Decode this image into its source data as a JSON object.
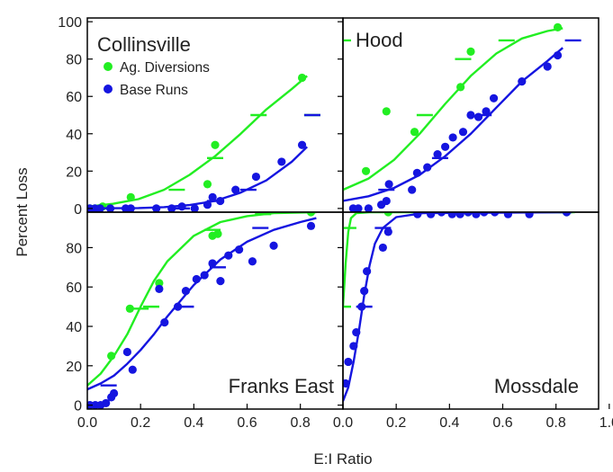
{
  "figure": {
    "ylabel": "Percent Loss",
    "xlabel": "E:I Ratio",
    "legend": {
      "ag_label": "Ag. Diversions",
      "base_label": "Base Runs",
      "placement": "top-left of Collinsville panel"
    }
  },
  "colors": {
    "ag": "#22ee22",
    "base": "#1515e0",
    "axis": "#000000"
  },
  "chart_data": [
    {
      "type": "scatter",
      "title": "Collinsville",
      "xlim": [
        0,
        1.0
      ],
      "ylim": [
        -2,
        102
      ],
      "yticks": [
        0,
        20,
        40,
        60,
        80,
        100
      ],
      "xticks": [],
      "series": [
        {
          "name": "Ag. Diversions",
          "color": "#22ee22",
          "points": [
            [
              0.01,
              0
            ],
            [
              0.03,
              0
            ],
            [
              0.06,
              1
            ],
            [
              0.17,
              6
            ],
            [
              0.47,
              13
            ],
            [
              0.5,
              34
            ],
            [
              0.84,
              70
            ]
          ],
          "curve": [
            [
              0,
              1
            ],
            [
              0.1,
              2.5
            ],
            [
              0.2,
              5
            ],
            [
              0.3,
              10
            ],
            [
              0.4,
              18
            ],
            [
              0.5,
              28
            ],
            [
              0.6,
              40
            ],
            [
              0.7,
              53
            ],
            [
              0.8,
              64
            ],
            [
              0.86,
              71
            ]
          ],
          "dashes": [
            [
              0.35,
              10
            ],
            [
              0.5,
              27
            ],
            [
              0.67,
              50
            ],
            [
              0.88,
              50
            ]
          ]
        },
        {
          "name": "Base Runs",
          "color": "#1515e0",
          "points": [
            [
              0.01,
              0
            ],
            [
              0.03,
              0
            ],
            [
              0.05,
              0
            ],
            [
              0.09,
              0
            ],
            [
              0.15,
              0
            ],
            [
              0.17,
              0
            ],
            [
              0.27,
              0
            ],
            [
              0.33,
              0
            ],
            [
              0.37,
              1
            ],
            [
              0.42,
              0
            ],
            [
              0.47,
              2
            ],
            [
              0.49,
              6
            ],
            [
              0.52,
              4
            ],
            [
              0.58,
              10
            ],
            [
              0.66,
              17
            ],
            [
              0.76,
              25
            ],
            [
              0.84,
              34
            ]
          ],
          "curve": [
            [
              0,
              0
            ],
            [
              0.2,
              0.2
            ],
            [
              0.3,
              0.7
            ],
            [
              0.4,
              1.8
            ],
            [
              0.5,
              4
            ],
            [
              0.6,
              8.5
            ],
            [
              0.7,
              15
            ],
            [
              0.8,
              25
            ],
            [
              0.86,
              33
            ]
          ],
          "dashes": [
            [
              0.37,
              0
            ],
            [
              0.5,
              4
            ],
            [
              0.63,
              10
            ],
            [
              0.88,
              50
            ]
          ]
        }
      ]
    },
    {
      "type": "scatter",
      "title": "Hood",
      "xlim": [
        0,
        1.0
      ],
      "ylim": [
        -2,
        102
      ],
      "yticks": [],
      "xticks": [],
      "series": [
        {
          "name": "Ag. Diversions",
          "color": "#22ee22",
          "points": [
            [
              0.09,
              20
            ],
            [
              0.17,
              52
            ],
            [
              0.28,
              41
            ],
            [
              0.46,
              65
            ],
            [
              0.5,
              84
            ],
            [
              0.84,
              97
            ]
          ],
          "curve": [
            [
              0,
              10
            ],
            [
              0.1,
              16
            ],
            [
              0.2,
              26
            ],
            [
              0.3,
              40
            ],
            [
              0.4,
              56
            ],
            [
              0.5,
              71
            ],
            [
              0.6,
              83
            ],
            [
              0.7,
              91
            ],
            [
              0.8,
              95
            ],
            [
              0.86,
              96.5
            ]
          ],
          "dashes": [
            [
              0,
              90
            ],
            [
              0.32,
              50
            ],
            [
              0.47,
              80
            ],
            [
              0.64,
              90
            ]
          ]
        },
        {
          "name": "Base Runs",
          "color": "#1515e0",
          "points": [
            [
              0.04,
              0
            ],
            [
              0.06,
              0
            ],
            [
              0.1,
              0
            ],
            [
              0.15,
              2
            ],
            [
              0.17,
              4
            ],
            [
              0.18,
              13
            ],
            [
              0.27,
              10
            ],
            [
              0.29,
              19
            ],
            [
              0.33,
              22
            ],
            [
              0.37,
              29
            ],
            [
              0.4,
              33
            ],
            [
              0.43,
              38
            ],
            [
              0.47,
              41
            ],
            [
              0.5,
              50
            ],
            [
              0.53,
              49
            ],
            [
              0.56,
              52
            ],
            [
              0.59,
              59
            ],
            [
              0.7,
              68
            ],
            [
              0.8,
              76
            ],
            [
              0.84,
              82
            ]
          ],
          "curve": [
            [
              0,
              4
            ],
            [
              0.1,
              6.5
            ],
            [
              0.2,
              11
            ],
            [
              0.3,
              18
            ],
            [
              0.4,
              28
            ],
            [
              0.5,
              40
            ],
            [
              0.6,
              54
            ],
            [
              0.7,
              68
            ],
            [
              0.8,
              79
            ],
            [
              0.86,
              86
            ]
          ],
          "dashes": [
            [
              0.17,
              10
            ],
            [
              0.38,
              27
            ],
            [
              0.55,
              50
            ],
            [
              0.9,
              90
            ]
          ]
        }
      ]
    },
    {
      "type": "scatter",
      "title": "Franks East",
      "xlim": [
        0,
        0.96
      ],
      "ylim": [
        -2,
        98
      ],
      "yticks": [
        0,
        20,
        40,
        60,
        80
      ],
      "xticks": [
        0.0,
        0.2,
        0.4,
        0.6,
        0.8
      ],
      "series": [
        {
          "name": "Ag. Diversions",
          "color": "#22ee22",
          "points": [
            [
              0.09,
              25
            ],
            [
              0.16,
              49
            ],
            [
              0.27,
              62
            ],
            [
              0.47,
              86
            ],
            [
              0.49,
              87
            ],
            [
              0.84,
              98
            ]
          ],
          "curve": [
            [
              0,
              10
            ],
            [
              0.05,
              16
            ],
            [
              0.1,
              25
            ],
            [
              0.15,
              36
            ],
            [
              0.2,
              50
            ],
            [
              0.25,
              63
            ],
            [
              0.3,
              73
            ],
            [
              0.4,
              86
            ],
            [
              0.5,
              93
            ],
            [
              0.6,
              96
            ],
            [
              0.7,
              97.5
            ],
            [
              0.86,
              98
            ]
          ],
          "dashes": [
            [
              0.2,
              49
            ],
            [
              0.24,
              50
            ],
            [
              0.47,
              89
            ],
            [
              0.66,
              97
            ]
          ]
        },
        {
          "name": "Base Runs",
          "color": "#1515e0",
          "points": [
            [
              0.01,
              0
            ],
            [
              0.03,
              0
            ],
            [
              0.05,
              0
            ],
            [
              0.07,
              1
            ],
            [
              0.09,
              4
            ],
            [
              0.1,
              6
            ],
            [
              0.15,
              27
            ],
            [
              0.17,
              18
            ],
            [
              0.27,
              59
            ],
            [
              0.29,
              42
            ],
            [
              0.34,
              50
            ],
            [
              0.37,
              58
            ],
            [
              0.41,
              64
            ],
            [
              0.44,
              66
            ],
            [
              0.47,
              72
            ],
            [
              0.5,
              63
            ],
            [
              0.53,
              76
            ],
            [
              0.57,
              79
            ],
            [
              0.62,
              73
            ],
            [
              0.7,
              81
            ],
            [
              0.84,
              91
            ]
          ],
          "curve": [
            [
              0,
              8
            ],
            [
              0.05,
              11
            ],
            [
              0.1,
              15
            ],
            [
              0.15,
              21
            ],
            [
              0.2,
              28
            ],
            [
              0.25,
              36
            ],
            [
              0.3,
              45
            ],
            [
              0.35,
              53
            ],
            [
              0.4,
              61
            ],
            [
              0.5,
              74
            ],
            [
              0.6,
              83
            ],
            [
              0.7,
              89
            ],
            [
              0.8,
              93
            ],
            [
              0.86,
              95
            ]
          ],
          "dashes": [
            [
              0.08,
              10
            ],
            [
              0.37,
              50
            ],
            [
              0.49,
              70
            ],
            [
              0.65,
              90
            ]
          ]
        }
      ]
    },
    {
      "type": "scatter",
      "title": "Mossdale",
      "xlim": [
        0,
        0.96
      ],
      "ylim": [
        -2,
        98
      ],
      "yticks": [],
      "xticks": [
        0.0,
        0.2,
        0.4,
        0.6,
        0.8,
        1.0
      ],
      "series": [
        {
          "name": "Ag. Diversions",
          "color": "#22ee22",
          "points": [
            [
              0.17,
              98
            ],
            [
              0.47,
              98
            ],
            [
              0.5,
              98
            ],
            [
              0.84,
              98
            ]
          ],
          "curve": [
            [
              0,
              50
            ],
            [
              0.01,
              72
            ],
            [
              0.02,
              88
            ],
            [
              0.03,
              95
            ],
            [
              0.05,
              97.5
            ],
            [
              0.1,
              98
            ],
            [
              0.86,
              98
            ]
          ],
          "dashes": [
            [
              0,
              50
            ],
            [
              0.02,
              90
            ],
            [
              0.46,
              98
            ],
            [
              0.84,
              98
            ]
          ]
        },
        {
          "name": "Base Runs",
          "color": "#1515e0",
          "points": [
            [
              0.01,
              11
            ],
            [
              0.02,
              22
            ],
            [
              0.04,
              30
            ],
            [
              0.05,
              37
            ],
            [
              0.07,
              50
            ],
            [
              0.08,
              58
            ],
            [
              0.09,
              68
            ],
            [
              0.15,
              80
            ],
            [
              0.17,
              88
            ],
            [
              0.28,
              97
            ],
            [
              0.33,
              97
            ],
            [
              0.37,
              98
            ],
            [
              0.41,
              97
            ],
            [
              0.44,
              97
            ],
            [
              0.47,
              98
            ],
            [
              0.5,
              97
            ],
            [
              0.53,
              98
            ],
            [
              0.57,
              98
            ],
            [
              0.62,
              97
            ],
            [
              0.7,
              97
            ],
            [
              0.84,
              98
            ]
          ],
          "curve": [
            [
              0,
              2
            ],
            [
              0.02,
              9
            ],
            [
              0.04,
              22
            ],
            [
              0.06,
              38
            ],
            [
              0.08,
              56
            ],
            [
              0.1,
              71
            ],
            [
              0.12,
              82
            ],
            [
              0.15,
              90
            ],
            [
              0.2,
              95.5
            ],
            [
              0.3,
              97.5
            ],
            [
              0.86,
              98
            ]
          ],
          "dashes": [
            [
              0.08,
              50
            ],
            [
              0.15,
              90
            ],
            [
              0.62,
              98
            ]
          ]
        }
      ]
    }
  ]
}
